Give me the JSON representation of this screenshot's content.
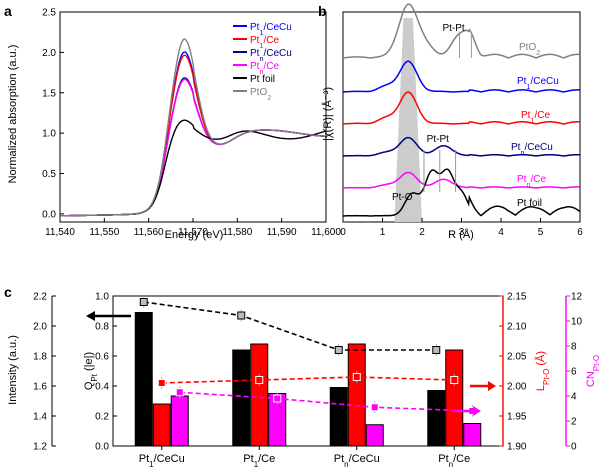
{
  "chart_data": [
    {
      "panel": "a",
      "type": "line",
      "xlabel": "Energy (eV)",
      "ylabel": "Normalized absorption (a.u.)",
      "xlim": [
        11540,
        11600
      ],
      "ylim": [
        -0.1,
        2.5
      ],
      "xticks": [
        "11,540",
        "11,550",
        "11,560",
        "11,570",
        "11,580",
        "11,590",
        "11,600"
      ],
      "yticks": [
        "0.0",
        "0.5",
        "1.0",
        "1.5",
        "2.0",
        "2.5"
      ],
      "legend_position": "top-right",
      "series": [
        {
          "name": "Pt1/CeCu",
          "legend": {
            "base": "Pt",
            "sub": "1",
            "rest": "/CeCu"
          },
          "color": "#0000ff",
          "peak": 2.04,
          "peak_x": 11568,
          "tail": 1.0
        },
        {
          "name": "Pt1/Ce",
          "legend": {
            "base": "Pt",
            "sub": "1",
            "rest": "/Ce"
          },
          "color": "#ff0000",
          "peak": 2.0,
          "peak_x": 11568,
          "tail": 1.0
        },
        {
          "name": "Ptn/CeCu",
          "legend": {
            "base": "Pt",
            "sub": "n",
            "rest": "/CeCu"
          },
          "color": "#000080",
          "peak": 1.72,
          "peak_x": 11568,
          "tail": 1.0
        },
        {
          "name": "Ptn/Ce",
          "legend": {
            "base": "Pt",
            "sub": "n",
            "rest": "/Ce"
          },
          "color": "#ff00ff",
          "peak": 1.7,
          "peak_x": 11568,
          "tail": 1.0
        },
        {
          "name": "Pt foil",
          "legend": {
            "base": "Pt foil",
            "sub": "",
            "rest": ""
          },
          "color": "#000000",
          "peak": 1.2,
          "peak_x": 11567.5,
          "tail": 1.0
        },
        {
          "name": "PtO2",
          "legend": {
            "base": "PtO",
            "sub": "2",
            "rest": ""
          },
          "color": "#808080",
          "peak": 2.2,
          "peak_x": 11568,
          "tail": 1.0
        }
      ]
    },
    {
      "panel": "b",
      "type": "line",
      "xlabel": "R (Å)",
      "ylabel": "|χ(R)| (Å⁻³)",
      "xlim": [
        0,
        6
      ],
      "xticks": [
        "0",
        "1",
        "2",
        "3",
        "4",
        "5",
        "6"
      ],
      "band_center": 1.65,
      "series": [
        {
          "name": "PtO2",
          "label": {
            "base": "PtO",
            "sub": "2",
            "rest": ""
          },
          "color": "#808080",
          "amp": 1.0,
          "pt_pt": true
        },
        {
          "name": "Pt1/CeCu",
          "label": {
            "base": "Pt",
            "sub": "1",
            "rest": "/CeCu"
          },
          "color": "#0000ff",
          "amp": 0.75,
          "pt_pt": false
        },
        {
          "name": "Pt1/Ce",
          "label": {
            "base": "Pt",
            "sub": "1",
            "rest": "/Ce"
          },
          "color": "#ff0000",
          "amp": 0.78,
          "pt_pt": false
        },
        {
          "name": "Ptn/CeCu",
          "label": {
            "base": "Pt",
            "sub": "n",
            "rest": "/CeCu"
          },
          "color": "#000080",
          "amp": 0.45,
          "pt_pt": true
        },
        {
          "name": "Ptn/Ce",
          "label": {
            "base": "Pt",
            "sub": "n",
            "rest": "/Ce"
          },
          "color": "#ff00ff",
          "amp": 0.38,
          "pt_pt": true
        },
        {
          "name": "Pt foil",
          "label": {
            "base": "Pt foil",
            "sub": "",
            "rest": ""
          },
          "color": "#000000",
          "amp": 0.35,
          "pt_pt": true
        }
      ],
      "annotations": [
        "Pt-Pt",
        "Pt-Pt",
        "Pt-O"
      ]
    },
    {
      "panel": "c",
      "type": "bar",
      "categories": [
        {
          "base": "Pt",
          "sub": "1",
          "rest": "/CeCu"
        },
        {
          "base": "Pt",
          "sub": "1",
          "rest": "/Ce"
        },
        {
          "base": "Pt",
          "sub": "n",
          "rest": "/CeCu"
        },
        {
          "base": "Pt",
          "sub": "n",
          "rest": "/Ce"
        }
      ],
      "axes": {
        "intensity": {
          "label": "Intensity (a.u.)",
          "ylim": [
            1.2,
            2.2
          ],
          "ticks": [
            "1.2",
            "1.4",
            "1.6",
            "1.8",
            "2.0",
            "2.2"
          ]
        },
        "q": {
          "label_base": "Q",
          "label_sub": "Pt",
          "label_rest": " (|e|)",
          "ylim": [
            0.0,
            1.0
          ],
          "ticks": [
            "0.0",
            "0.2",
            "0.4",
            "0.6",
            "0.8",
            "1.0"
          ],
          "color": "#000000"
        },
        "l": {
          "label_base": "L",
          "label_sub": "Pt-O",
          "label_rest": " (Å)",
          "ylim": [
            1.9,
            2.15
          ],
          "ticks": [
            "1.90",
            "1.95",
            "2.00",
            "2.05",
            "2.10",
            "2.15"
          ],
          "color": "#ff0000"
        },
        "cn": {
          "label_base": "CN",
          "label_sub": "Pt-O",
          "ylim": [
            0,
            12
          ],
          "ticks": [
            "0",
            "2",
            "4",
            "6",
            "8",
            "10",
            "12"
          ],
          "color": "#ff00ff"
        }
      },
      "series": [
        {
          "name": "Intensity",
          "style": "bar",
          "color": "#000000",
          "axis": "intensity",
          "values": [
            2.09,
            1.84,
            1.59,
            1.57
          ]
        },
        {
          "name": "L Pt-O",
          "style": "bar",
          "color": "#ff0000",
          "axis": "l",
          "values": [
            1.97,
            2.07,
            2.07,
            2.06
          ]
        },
        {
          "name": "CN Pt-O",
          "style": "bar",
          "color": "#ff00ff",
          "axis": "cn",
          "values": [
            4.0,
            4.2,
            1.7,
            1.8
          ]
        },
        {
          "name": "Q Pt",
          "style": "dashed-points",
          "color": "#000000",
          "axis": "q",
          "values": [
            0.96,
            0.87,
            0.64,
            0.64
          ]
        },
        {
          "name": "L Pt-O points",
          "style": "dashed-points",
          "color": "#ff0000",
          "axis": "l",
          "values": [
            2.005,
            2.01,
            2.015,
            2.01
          ]
        },
        {
          "name": "CN Pt-O points",
          "style": "dashed-points",
          "color": "#ff00ff",
          "axis": "cn",
          "values": [
            4.3,
            3.8,
            3.1,
            2.8
          ]
        }
      ]
    }
  ],
  "panel_labels": [
    "a",
    "b",
    "c"
  ]
}
